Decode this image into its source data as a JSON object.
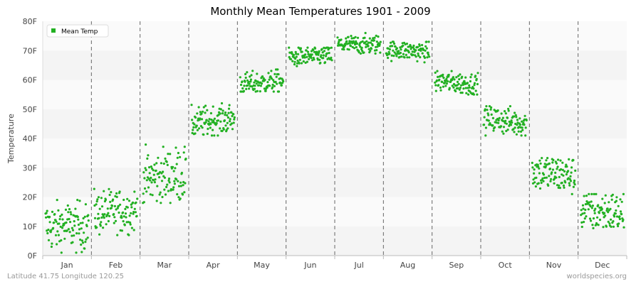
{
  "chart_data": {
    "type": "scatter",
    "title": "Monthly Mean Temperatures 1901 - 2009",
    "ylabel": "Temperature",
    "xlabel": "",
    "categories": [
      "Jan",
      "Feb",
      "Mar",
      "Apr",
      "May",
      "Jun",
      "Jul",
      "Aug",
      "Sep",
      "Oct",
      "Nov",
      "Dec"
    ],
    "yticks": [
      "0F",
      "10F",
      "20F",
      "30F",
      "40F",
      "50F",
      "60F",
      "70F",
      "80F"
    ],
    "ylim": [
      0,
      80
    ],
    "grid": true,
    "legend_position": "top-left",
    "years": [
      1901,
      2009
    ],
    "series": [
      {
        "name": "Mean Temp",
        "color": "#22b022",
        "monthly_ranges": [
          {
            "month": "Jan",
            "min": 1,
            "max": 19,
            "typical": 10
          },
          {
            "month": "Feb",
            "min": 7,
            "max": 23,
            "typical": 15
          },
          {
            "month": "Mar",
            "min": 18,
            "max": 38,
            "typical": 27
          },
          {
            "month": "Apr",
            "min": 41,
            "max": 52,
            "typical": 46
          },
          {
            "month": "May",
            "min": 56,
            "max": 64,
            "typical": 59
          },
          {
            "month": "Jun",
            "min": 64,
            "max": 71,
            "typical": 68
          },
          {
            "month": "Jul",
            "min": 69,
            "max": 76,
            "typical": 72
          },
          {
            "month": "Aug",
            "min": 66,
            "max": 73,
            "typical": 70
          },
          {
            "month": "Sep",
            "min": 55,
            "max": 63,
            "typical": 59
          },
          {
            "month": "Oct",
            "min": 41,
            "max": 51,
            "typical": 46
          },
          {
            "month": "Nov",
            "min": 21,
            "max": 35,
            "typical": 28
          },
          {
            "month": "Dec",
            "min": 6,
            "max": 21,
            "typical": 15
          }
        ]
      }
    ]
  },
  "footer": {
    "location": "Latitude 41.75 Longitude 120.25",
    "source": "worldspecies.org"
  }
}
